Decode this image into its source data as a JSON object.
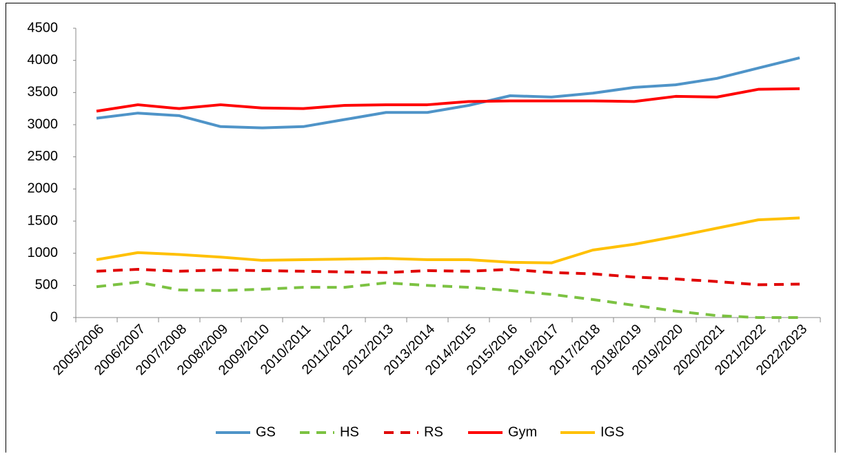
{
  "chart_data": {
    "type": "line",
    "categories": [
      "2005/2006",
      "2006/2007",
      "2007/2008",
      "2008/2009",
      "2009/2010",
      "2010/2011",
      "2011/2012",
      "2012/2013",
      "2013/2014",
      "2014/2015",
      "2015/2016",
      "2016/2017",
      "2017/2018",
      "2018/2019",
      "2019/2020",
      "2020/2021",
      "2021/2022",
      "2022/2023"
    ],
    "series": [
      {
        "name": "GS",
        "color": "#4f94c8",
        "dashed": false,
        "values": [
          3100,
          3180,
          3140,
          2970,
          2950,
          2970,
          3080,
          3190,
          3190,
          3300,
          3450,
          3430,
          3490,
          3580,
          3620,
          3720,
          3880,
          4040
        ]
      },
      {
        "name": "HS",
        "color": "#7cc242",
        "dashed": true,
        "values": [
          480,
          550,
          430,
          420,
          440,
          470,
          470,
          540,
          500,
          470,
          420,
          360,
          280,
          190,
          100,
          30,
          0,
          0
        ]
      },
      {
        "name": "RS",
        "color": "#e00000",
        "dashed": true,
        "values": [
          720,
          750,
          720,
          740,
          730,
          720,
          710,
          700,
          730,
          720,
          750,
          700,
          680,
          630,
          600,
          560,
          510,
          520
        ]
      },
      {
        "name": "Gym",
        "color": "#ff0000",
        "dashed": false,
        "values": [
          3210,
          3310,
          3250,
          3310,
          3260,
          3250,
          3300,
          3310,
          3310,
          3360,
          3370,
          3370,
          3370,
          3360,
          3440,
          3430,
          3550,
          3560
        ]
      },
      {
        "name": "IGS",
        "color": "#ffc000",
        "dashed": false,
        "values": [
          900,
          1010,
          980,
          940,
          890,
          900,
          910,
          920,
          900,
          900,
          860,
          850,
          1050,
          1140,
          1260,
          1390,
          1520,
          1550
        ]
      }
    ],
    "ylim": [
      0,
      4500
    ],
    "yticks": [
      0,
      500,
      1000,
      1500,
      2000,
      2500,
      3000,
      3500,
      4000,
      4500
    ],
    "grid": false,
    "legend": "bottom"
  }
}
